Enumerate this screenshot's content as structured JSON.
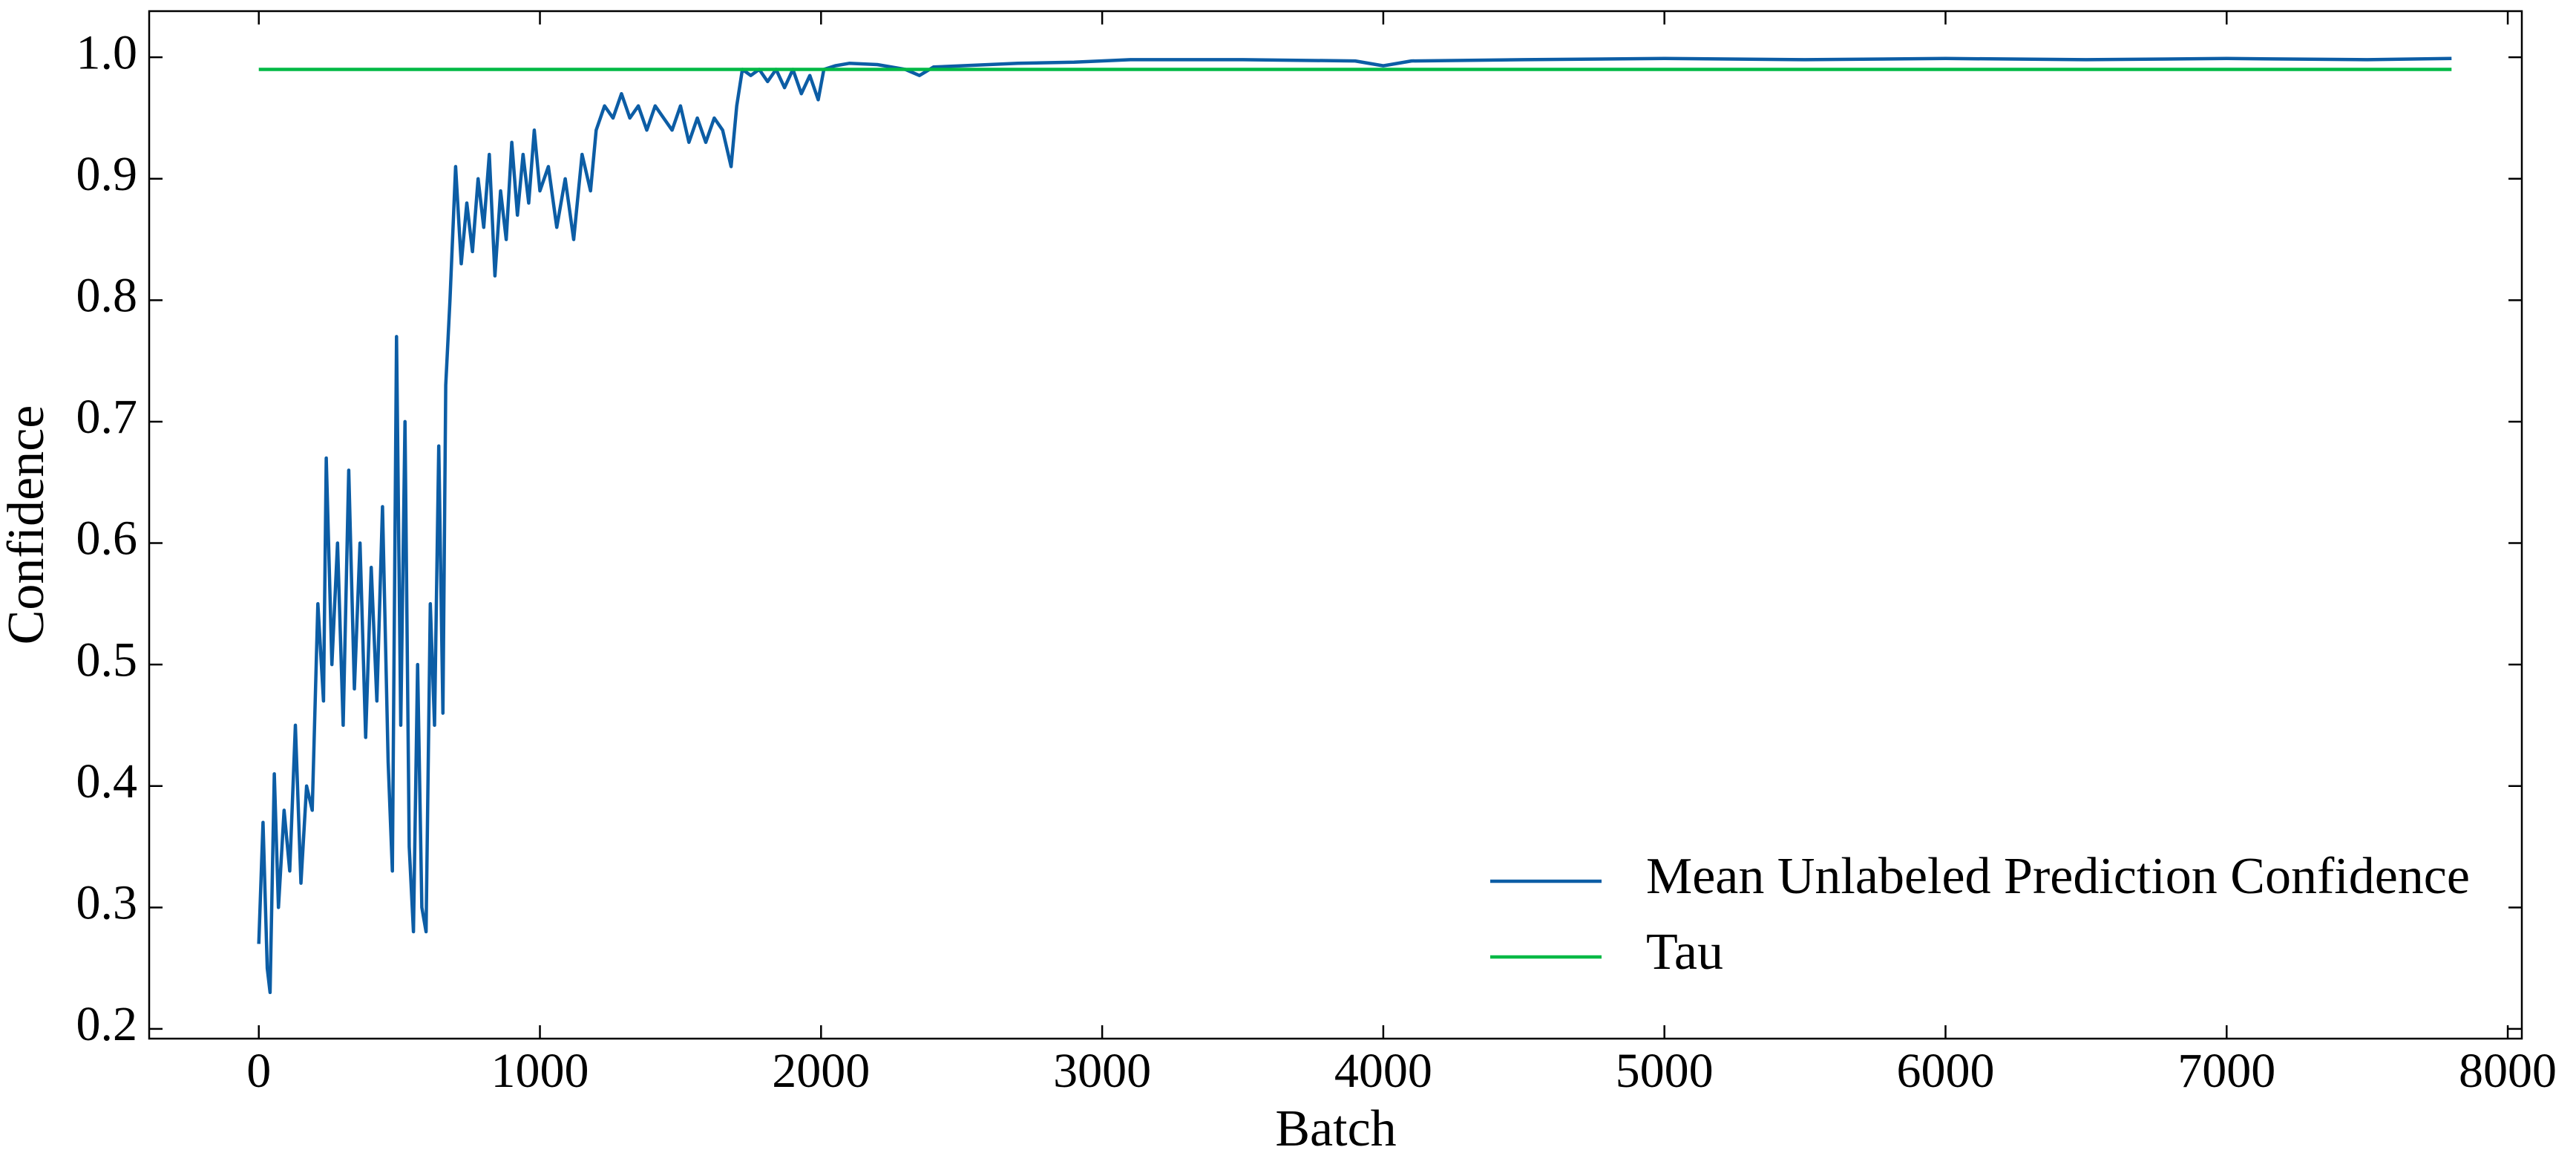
{
  "chart_data": {
    "type": "line",
    "xlabel": "Batch",
    "ylabel": "Confidence",
    "xlim": [
      -390,
      8050
    ],
    "ylim": [
      0.192,
      1.038
    ],
    "xticks": [
      0,
      1000,
      2000,
      3000,
      4000,
      5000,
      6000,
      7000,
      8000
    ],
    "yticks": [
      {
        "value": 0.2,
        "label": "0.2"
      },
      {
        "value": 0.3,
        "label": "0.3"
      },
      {
        "value": 0.4,
        "label": "0.4"
      },
      {
        "value": 0.5,
        "label": "0.5"
      },
      {
        "value": 0.6,
        "label": "0.6"
      },
      {
        "value": 0.7,
        "label": "0.7"
      },
      {
        "value": 0.8,
        "label": "0.8"
      },
      {
        "value": 0.9,
        "label": "0.9"
      },
      {
        "value": 1.0,
        "label": "1.0"
      }
    ],
    "legend": "lower right",
    "series": [
      {
        "name": "Mean Unlabeled Prediction Confidence",
        "color": "#0C5DA5",
        "x": [
          0,
          15,
          30,
          40,
          55,
          70,
          90,
          110,
          130,
          150,
          170,
          190,
          210,
          230,
          240,
          260,
          280,
          300,
          320,
          340,
          360,
          380,
          400,
          420,
          440,
          460,
          475,
          490,
          505,
          520,
          535,
          550,
          565,
          580,
          595,
          610,
          625,
          640,
          655,
          665,
          680,
          700,
          720,
          740,
          760,
          780,
          800,
          820,
          840,
          860,
          880,
          900,
          920,
          940,
          960,
          980,
          1000,
          1030,
          1060,
          1090,
          1120,
          1150,
          1180,
          1200,
          1230,
          1260,
          1290,
          1320,
          1350,
          1380,
          1410,
          1440,
          1470,
          1500,
          1530,
          1560,
          1590,
          1620,
          1650,
          1680,
          1700,
          1720,
          1750,
          1780,
          1810,
          1840,
          1870,
          1900,
          1930,
          1960,
          1990,
          2010,
          2050,
          2100,
          2200,
          2300,
          2350,
          2400,
          2500,
          2700,
          2900,
          3100,
          3500,
          3900,
          4000,
          4100,
          4500,
          5000,
          5500,
          6000,
          6500,
          7000,
          7500,
          7800
        ],
        "values": [
          0.27,
          0.37,
          0.25,
          0.23,
          0.41,
          0.3,
          0.38,
          0.33,
          0.45,
          0.32,
          0.4,
          0.38,
          0.55,
          0.47,
          0.67,
          0.5,
          0.6,
          0.45,
          0.66,
          0.48,
          0.6,
          0.44,
          0.58,
          0.47,
          0.63,
          0.42,
          0.33,
          0.77,
          0.45,
          0.7,
          0.35,
          0.28,
          0.5,
          0.3,
          0.28,
          0.55,
          0.45,
          0.68,
          0.46,
          0.73,
          0.8,
          0.91,
          0.83,
          0.88,
          0.84,
          0.9,
          0.86,
          0.92,
          0.82,
          0.89,
          0.85,
          0.93,
          0.87,
          0.92,
          0.88,
          0.94,
          0.89,
          0.91,
          0.86,
          0.9,
          0.85,
          0.92,
          0.89,
          0.94,
          0.96,
          0.95,
          0.97,
          0.95,
          0.96,
          0.94,
          0.96,
          0.95,
          0.94,
          0.96,
          0.93,
          0.95,
          0.93,
          0.95,
          0.94,
          0.91,
          0.96,
          0.99,
          0.985,
          0.99,
          0.98,
          0.99,
          0.975,
          0.99,
          0.97,
          0.985,
          0.965,
          0.99,
          0.993,
          0.995,
          0.994,
          0.99,
          0.985,
          0.992,
          0.993,
          0.995,
          0.996,
          0.998,
          0.998,
          0.997,
          0.993,
          0.997,
          0.998,
          0.999,
          0.998,
          0.999,
          0.998,
          0.999,
          0.998,
          0.999
        ]
      },
      {
        "name": "Tau",
        "color": "#00B945",
        "x": [
          0,
          7800
        ],
        "values": [
          0.99,
          0.99
        ]
      }
    ]
  }
}
